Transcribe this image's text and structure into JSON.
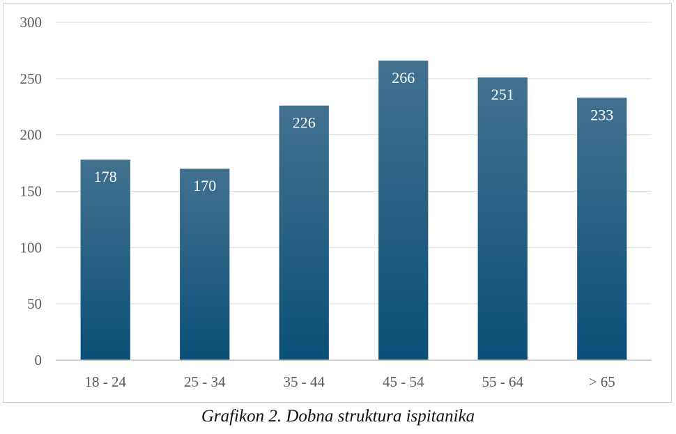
{
  "caption": "Grafikon 2. Dobna struktura ispitanika",
  "colors": {
    "bar_top": "#41718f",
    "bar_bottom": "#0a5078",
    "gridline": "#d9d9d9",
    "axis_line": "#bfbfbf",
    "data_label": "#ffffff",
    "tick_label": "#595959"
  },
  "chart_data": {
    "type": "bar",
    "categories": [
      "18 - 24",
      "25 - 34",
      "35 - 44",
      "45 - 54",
      "55 - 64",
      "> 65"
    ],
    "values": [
      178,
      170,
      226,
      266,
      251,
      233
    ],
    "data_labels": [
      "178",
      "170",
      "226",
      "266",
      "251",
      "233"
    ],
    "title": "",
    "xlabel": "",
    "ylabel": "",
    "ylim": [
      0,
      300
    ],
    "yticks": [
      0,
      50,
      100,
      150,
      200,
      250,
      300
    ],
    "ytick_labels": [
      "0",
      "50",
      "100",
      "150",
      "200",
      "250",
      "300"
    ],
    "grid": true,
    "legend": "none"
  }
}
